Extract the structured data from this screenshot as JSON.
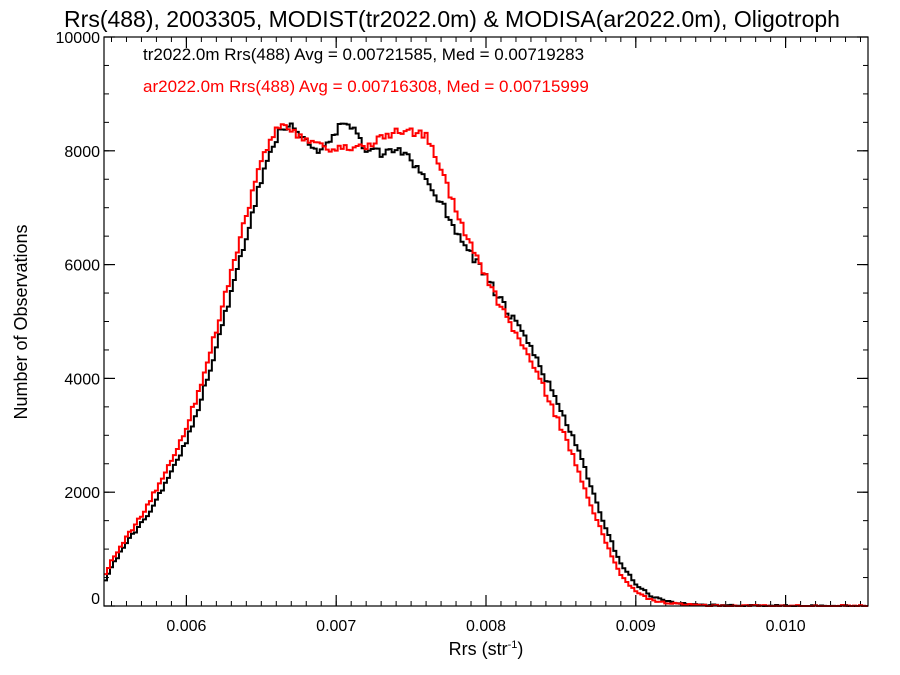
{
  "chart_data": {
    "type": "line",
    "title": "Rrs(488), 2003305, MODIST(tr2022.0m) & MODISA(ar2022.0m), Oligotroph",
    "xlabel": "Rrs (str",
    "xlabel_sup": "-1",
    "xlabel_suffix": ")",
    "ylabel": "Number of Observations",
    "xlim": [
      0.00545,
      0.01055
    ],
    "ylim": [
      0,
      10000
    ],
    "x_ticks": [
      0.006,
      0.007,
      0.008,
      0.009,
      0.01
    ],
    "x_tick_labels": [
      "0.006",
      "0.007",
      "0.008",
      "0.009",
      "0.010"
    ],
    "y_ticks": [
      0,
      2000,
      4000,
      6000,
      8000,
      10000
    ],
    "y_tick_labels": [
      "0",
      "2000",
      "4000",
      "6000",
      "8000",
      "10000"
    ],
    "legend_placement": "top-left",
    "series": [
      {
        "name": "tr2022.0m",
        "legend": "tr2022.0m Rrs(488) Avg = 0.00721585, Med = 0.00719283",
        "color": "#000000",
        "x": [
          0.00545,
          0.0055,
          0.0056,
          0.0057,
          0.0058,
          0.0059,
          0.006,
          0.0061,
          0.0062,
          0.0063,
          0.0064,
          0.0065,
          0.0066,
          0.00665,
          0.0067,
          0.0068,
          0.0069,
          0.007,
          0.00705,
          0.0071,
          0.0072,
          0.0073,
          0.0074,
          0.0075,
          0.0076,
          0.0077,
          0.0078,
          0.0079,
          0.008,
          0.0081,
          0.0082,
          0.0083,
          0.0084,
          0.0085,
          0.0086,
          0.0087,
          0.0088,
          0.0089,
          0.009,
          0.0091,
          0.0092,
          0.0093,
          0.0094,
          0.0095,
          0.0096,
          0.0098,
          0.01,
          0.0102,
          0.01055
        ],
        "values": [
          400,
          700,
          1100,
          1450,
          1850,
          2350,
          2900,
          3650,
          4550,
          5500,
          6450,
          7500,
          8200,
          8450,
          8450,
          8200,
          8000,
          8300,
          8550,
          8450,
          8000,
          7950,
          8000,
          7850,
          7500,
          7100,
          6600,
          6200,
          5800,
          5350,
          4950,
          4550,
          4000,
          3450,
          2850,
          2100,
          1350,
          750,
          380,
          180,
          90,
          45,
          25,
          15,
          10,
          5,
          3,
          2,
          0
        ]
      },
      {
        "name": "ar2022.0m",
        "legend": "ar2022.0m Rrs(488) Avg = 0.00716308, Med = 0.00715999",
        "color": "#ff0000",
        "x": [
          0.00545,
          0.0055,
          0.0056,
          0.0057,
          0.0058,
          0.0059,
          0.006,
          0.0061,
          0.0062,
          0.0063,
          0.0064,
          0.0065,
          0.0066,
          0.00665,
          0.0067,
          0.0068,
          0.0069,
          0.007,
          0.0071,
          0.0072,
          0.0073,
          0.0074,
          0.0075,
          0.0076,
          0.0077,
          0.0078,
          0.0079,
          0.008,
          0.0081,
          0.0082,
          0.0083,
          0.0084,
          0.0085,
          0.0086,
          0.0087,
          0.0088,
          0.0089,
          0.009,
          0.0091,
          0.0092,
          0.0093,
          0.0094,
          0.0095,
          0.0096,
          0.0098,
          0.01,
          0.0102,
          0.01055
        ],
        "values": [
          500,
          800,
          1200,
          1600,
          2050,
          2550,
          3150,
          3900,
          4850,
          5850,
          6850,
          7850,
          8350,
          8450,
          8350,
          8150,
          8050,
          8000,
          8050,
          8100,
          8200,
          8350,
          8350,
          8250,
          7700,
          6950,
          6350,
          5800,
          5250,
          4800,
          4300,
          3750,
          3150,
          2500,
          1800,
          1100,
          550,
          250,
          110,
          55,
          30,
          15,
          10,
          5,
          3,
          2,
          1,
          0
        ]
      }
    ]
  }
}
